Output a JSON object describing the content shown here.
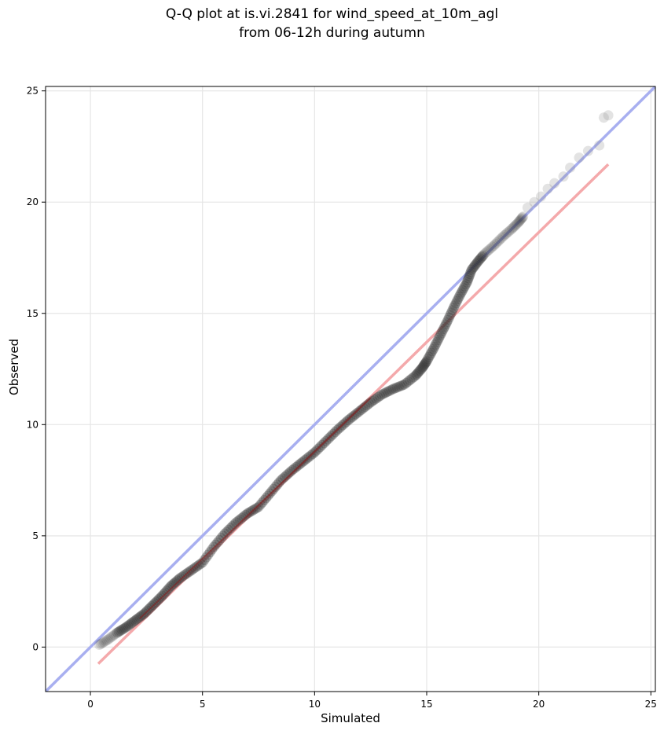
{
  "chart_data": {
    "type": "scatter",
    "title": "Q-Q plot at is.vi.2841 for wind_speed_at_10m_agl",
    "subtitle": "from 06-12h during autumn",
    "xlabel": "Simulated",
    "ylabel": "Observed",
    "xlim": [
      -2,
      25.2
    ],
    "ylim": [
      -2,
      25.2
    ],
    "xticks": [
      "0",
      "5",
      "10",
      "15",
      "20",
      "25"
    ],
    "yticks": [
      "0",
      "5",
      "10",
      "15",
      "20",
      "25"
    ],
    "grid": true,
    "colors": {
      "points": "#333333",
      "identity_line": "#a8aff0",
      "fit_line": "#f4a9ab",
      "fit_line_dark": "#8b1a1a"
    },
    "identity_line": {
      "x": [
        -2,
        25.2
      ],
      "y": [
        -2,
        25.2
      ]
    },
    "fit_line": {
      "x": [
        0.35,
        23.1
      ],
      "y": [
        -0.75,
        21.7
      ]
    },
    "qq_curve": {
      "x": [
        0.4,
        0.8,
        1.2,
        1.6,
        2.0,
        2.4,
        2.8,
        3.2,
        3.6,
        4.0,
        4.5,
        5.0,
        5.5,
        6.0,
        6.5,
        7.0,
        7.5,
        8.0,
        8.5,
        9.0,
        9.5,
        10.0,
        10.5,
        11.0,
        11.5,
        12.0,
        12.5,
        13.0,
        13.5,
        14.0,
        14.5,
        14.8,
        15.0,
        15.3,
        15.6,
        15.9,
        16.2,
        16.5,
        16.8,
        17.0,
        17.3,
        17.6,
        18.0,
        18.4,
        18.8,
        19.1,
        19.3
      ],
      "y": [
        0.1,
        0.35,
        0.65,
        0.9,
        1.2,
        1.5,
        1.9,
        2.3,
        2.75,
        3.1,
        3.45,
        3.8,
        4.5,
        5.1,
        5.6,
        6.0,
        6.3,
        6.9,
        7.5,
        7.95,
        8.35,
        8.75,
        9.25,
        9.75,
        10.2,
        10.6,
        11.0,
        11.35,
        11.6,
        11.8,
        12.2,
        12.55,
        12.85,
        13.4,
        14.0,
        14.6,
        15.25,
        15.85,
        16.4,
        16.95,
        17.35,
        17.7,
        18.05,
        18.45,
        18.8,
        19.1,
        19.35
      ]
    },
    "outlier_points": {
      "x": [
        19.5,
        19.8,
        20.1,
        20.4,
        20.7,
        21.1,
        21.4,
        21.8,
        22.2,
        22.7,
        22.9,
        23.1
      ],
      "y": [
        19.75,
        20.0,
        20.25,
        20.6,
        20.85,
        21.15,
        21.55,
        22.0,
        22.3,
        22.55,
        23.8,
        23.9
      ]
    }
  }
}
